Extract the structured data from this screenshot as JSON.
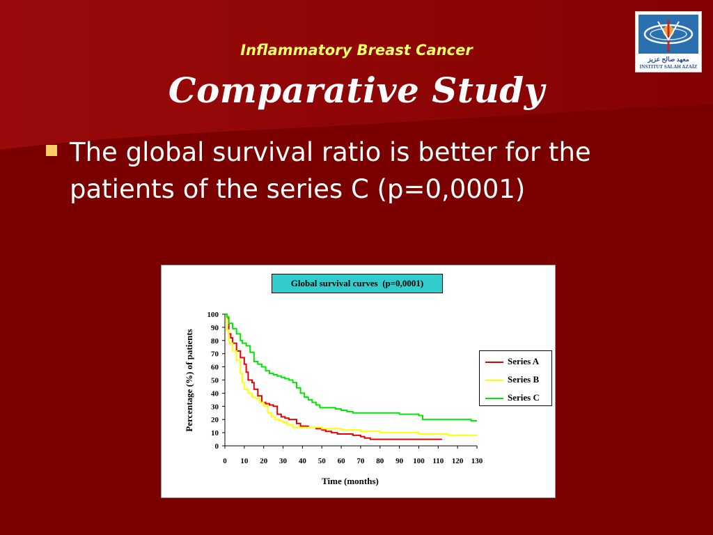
{
  "slide": {
    "subtitle": "Inflammatory Breast Cancer",
    "title": "Comparative Study",
    "bullet": "The global survival ratio is better for the patients of the series C (p=0,0001)"
  },
  "logo": {
    "text_ar": "معهد صالح عزيز",
    "text_en": "INSTITUT SALAH AZAÏZ"
  },
  "colors": {
    "background": "#7a0000",
    "subtitle": "#ffff66",
    "bullet": "#ffcc66",
    "chart_title_bg": "#33cccc",
    "series_a": "#e60000",
    "series_b": "#ffff00",
    "series_c": "#00e600"
  },
  "chart_data": {
    "type": "line",
    "title": "Global survival curves  (p=0,0001)",
    "xlabel": "Time (months)",
    "ylabel": "Percentage (%) of patients",
    "xlim": [
      0,
      130
    ],
    "ylim": [
      0,
      100
    ],
    "xticks": [
      0,
      10,
      20,
      30,
      40,
      50,
      60,
      70,
      80,
      90,
      100,
      110,
      120,
      130
    ],
    "yticks": [
      0,
      10,
      20,
      30,
      40,
      50,
      60,
      70,
      80,
      90,
      100
    ],
    "legend_position": "right",
    "grid": false,
    "series": [
      {
        "name": "Series A",
        "color": "#e60000",
        "points": [
          [
            0,
            100
          ],
          [
            1,
            97
          ],
          [
            2,
            85
          ],
          [
            3,
            82
          ],
          [
            4,
            78
          ],
          [
            6,
            72
          ],
          [
            8,
            67
          ],
          [
            10,
            62
          ],
          [
            11,
            56
          ],
          [
            12,
            50
          ],
          [
            14,
            48
          ],
          [
            15,
            43
          ],
          [
            17,
            38
          ],
          [
            19,
            33
          ],
          [
            21,
            32
          ],
          [
            23,
            31
          ],
          [
            25,
            30
          ],
          [
            27,
            24
          ],
          [
            29,
            22
          ],
          [
            31,
            21
          ],
          [
            33,
            20
          ],
          [
            35,
            20
          ],
          [
            37,
            17
          ],
          [
            39,
            15
          ],
          [
            41,
            15
          ],
          [
            43,
            14
          ],
          [
            45,
            14
          ],
          [
            47,
            13
          ],
          [
            50,
            12
          ],
          [
            52,
            11
          ],
          [
            55,
            10
          ],
          [
            58,
            9
          ],
          [
            62,
            9
          ],
          [
            66,
            8
          ],
          [
            70,
            7
          ],
          [
            72,
            6
          ],
          [
            75,
            5
          ],
          [
            80,
            5
          ],
          [
            90,
            5
          ],
          [
            100,
            5
          ],
          [
            112,
            5
          ]
        ]
      },
      {
        "name": "Series B",
        "color": "#ffff00",
        "points": [
          [
            0,
            100
          ],
          [
            1,
            88
          ],
          [
            2,
            78
          ],
          [
            4,
            72
          ],
          [
            6,
            65
          ],
          [
            8,
            55
          ],
          [
            9,
            48
          ],
          [
            10,
            43
          ],
          [
            12,
            40
          ],
          [
            14,
            37
          ],
          [
            16,
            36
          ],
          [
            18,
            33
          ],
          [
            20,
            30
          ],
          [
            22,
            25
          ],
          [
            24,
            22
          ],
          [
            26,
            20
          ],
          [
            28,
            19
          ],
          [
            30,
            18
          ],
          [
            32,
            16
          ],
          [
            35,
            14
          ],
          [
            40,
            14
          ],
          [
            45,
            14
          ],
          [
            50,
            13
          ],
          [
            55,
            13
          ],
          [
            60,
            12
          ],
          [
            70,
            11
          ],
          [
            80,
            10
          ],
          [
            90,
            10
          ],
          [
            100,
            9
          ],
          [
            110,
            9
          ],
          [
            115,
            8
          ],
          [
            120,
            8
          ],
          [
            130,
            8
          ]
        ]
      },
      {
        "name": "Series C",
        "color": "#00e600",
        "points": [
          [
            0,
            100
          ],
          [
            1,
            98
          ],
          [
            2,
            93
          ],
          [
            4,
            89
          ],
          [
            6,
            85
          ],
          [
            8,
            80
          ],
          [
            9,
            78
          ],
          [
            11,
            76
          ],
          [
            13,
            71
          ],
          [
            15,
            64
          ],
          [
            17,
            62
          ],
          [
            19,
            60
          ],
          [
            21,
            57
          ],
          [
            23,
            55
          ],
          [
            25,
            54
          ],
          [
            27,
            53
          ],
          [
            29,
            52
          ],
          [
            31,
            51
          ],
          [
            33,
            50
          ],
          [
            35,
            48
          ],
          [
            37,
            44
          ],
          [
            39,
            40
          ],
          [
            41,
            37
          ],
          [
            43,
            35
          ],
          [
            45,
            33
          ],
          [
            47,
            31
          ],
          [
            49,
            29
          ],
          [
            53,
            29
          ],
          [
            57,
            28
          ],
          [
            60,
            27
          ],
          [
            63,
            26
          ],
          [
            66,
            25
          ],
          [
            70,
            25
          ],
          [
            80,
            25
          ],
          [
            90,
            24
          ],
          [
            95,
            24
          ],
          [
            100,
            23
          ],
          [
            102,
            20
          ],
          [
            110,
            20
          ],
          [
            120,
            20
          ],
          [
            125,
            20
          ],
          [
            127,
            19
          ],
          [
            130,
            19
          ]
        ]
      }
    ]
  }
}
